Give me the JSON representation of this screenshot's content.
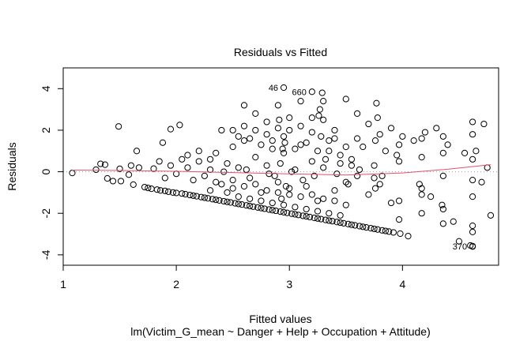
{
  "chart_data": {
    "type": "scatter",
    "title": "Residuals vs Fitted",
    "xlabel": "Fitted values",
    "ylabel": "Residuals",
    "subtitle": "lm(Victim_G_mean ~ Danger + Help + Occupation + Attitude)",
    "xlim": [
      1.0,
      4.85
    ],
    "ylim": [
      -4.5,
      5.0
    ],
    "xticks": [
      1,
      2,
      3,
      4
    ],
    "yticks": [
      -4,
      -2,
      0,
      2,
      4
    ],
    "grid": false,
    "point_style": "open-circle",
    "reference_line": {
      "y": 0,
      "style": "dotted",
      "color": "#9e9e9e"
    },
    "smooth": {
      "color": "#df536b",
      "x": [
        1.08,
        1.5,
        2.0,
        2.5,
        3.0,
        3.5,
        4.0,
        4.4,
        4.78
      ],
      "y": [
        0.08,
        0.06,
        0.02,
        -0.04,
        -0.1,
        -0.16,
        -0.06,
        0.12,
        0.34
      ]
    },
    "annotations": [
      {
        "label": "46",
        "x": 2.95,
        "y": 4.05
      },
      {
        "label": "660",
        "x": 3.2,
        "y": 3.85
      },
      {
        "label": "370",
        "x": 4.62,
        "y": -3.58
      }
    ],
    "points": [
      [
        1.08,
        -0.06
      ],
      [
        1.29,
        0.1
      ],
      [
        1.33,
        0.38
      ],
      [
        1.37,
        0.34
      ],
      [
        1.39,
        -0.32
      ],
      [
        1.44,
        -0.45
      ],
      [
        1.49,
        2.18
      ],
      [
        1.5,
        0.14
      ],
      [
        1.51,
        -0.45
      ],
      [
        1.58,
        -0.14
      ],
      [
        1.6,
        0.3
      ],
      [
        1.62,
        -0.62
      ],
      [
        1.65,
        1.0
      ],
      [
        1.67,
        0.2
      ],
      [
        1.72,
        -0.74
      ],
      [
        1.75,
        -0.78
      ],
      [
        1.78,
        -0.82
      ],
      [
        1.8,
        0.15
      ],
      [
        1.83,
        -0.86
      ],
      [
        1.86,
        -0.9
      ],
      [
        1.88,
        1.4
      ],
      [
        1.9,
        -0.92
      ],
      [
        1.93,
        -0.96
      ],
      [
        1.95,
        2.05
      ],
      [
        1.97,
        -1.0
      ],
      [
        2.0,
        -1.02
      ],
      [
        2.03,
        2.25
      ],
      [
        2.05,
        -1.05
      ],
      [
        2.08,
        -1.08
      ],
      [
        2.1,
        0.8
      ],
      [
        2.12,
        -1.12
      ],
      [
        2.15,
        -1.15
      ],
      [
        2.18,
        -1.18
      ],
      [
        2.2,
        1.0
      ],
      [
        2.22,
        -1.22
      ],
      [
        2.25,
        -1.25
      ],
      [
        2.28,
        -1.28
      ],
      [
        2.3,
        0.6
      ],
      [
        2.32,
        -1.32
      ],
      [
        2.35,
        -1.35
      ],
      [
        2.38,
        -1.38
      ],
      [
        2.4,
        2.0
      ],
      [
        2.42,
        -1.42
      ],
      [
        2.45,
        -1.45
      ],
      [
        2.48,
        -1.48
      ],
      [
        2.5,
        1.2
      ],
      [
        2.52,
        -1.52
      ],
      [
        2.55,
        -1.55
      ],
      [
        2.58,
        -1.58
      ],
      [
        2.6,
        3.2
      ],
      [
        2.62,
        -1.62
      ],
      [
        2.65,
        -1.65
      ],
      [
        2.68,
        -1.68
      ],
      [
        2.7,
        2.8
      ],
      [
        2.72,
        -1.72
      ],
      [
        2.75,
        -1.75
      ],
      [
        2.78,
        -1.78
      ],
      [
        2.8,
        1.8
      ],
      [
        2.82,
        -1.82
      ],
      [
        2.85,
        -1.85
      ],
      [
        2.88,
        -1.88
      ],
      [
        2.9,
        3.2
      ],
      [
        2.92,
        -1.92
      ],
      [
        2.95,
        -1.95
      ],
      [
        2.98,
        -1.98
      ],
      [
        3.0,
        2.6
      ],
      [
        3.02,
        -2.02
      ],
      [
        3.05,
        -2.05
      ],
      [
        3.08,
        -2.08
      ],
      [
        3.1,
        3.4
      ],
      [
        3.12,
        -2.12
      ],
      [
        3.15,
        -2.15
      ],
      [
        3.18,
        -2.18
      ],
      [
        3.2,
        2.6
      ],
      [
        3.22,
        -2.22
      ],
      [
        3.25,
        -2.25
      ],
      [
        3.28,
        -2.28
      ],
      [
        3.3,
        3.4
      ],
      [
        3.32,
        -2.32
      ],
      [
        3.35,
        -2.35
      ],
      [
        3.38,
        -2.38
      ],
      [
        3.4,
        1.6
      ],
      [
        3.42,
        -2.42
      ],
      [
        3.45,
        -2.45
      ],
      [
        3.48,
        -2.48
      ],
      [
        3.5,
        3.5
      ],
      [
        3.52,
        -2.52
      ],
      [
        3.55,
        -2.55
      ],
      [
        3.58,
        -2.58
      ],
      [
        3.6,
        2.8
      ],
      [
        3.62,
        -2.62
      ],
      [
        3.65,
        -2.65
      ],
      [
        3.68,
        -2.68
      ],
      [
        3.7,
        2.3
      ],
      [
        3.72,
        -2.72
      ],
      [
        3.75,
        -2.75
      ],
      [
        3.78,
        -2.78
      ],
      [
        3.8,
        1.8
      ],
      [
        3.82,
        -2.82
      ],
      [
        3.85,
        -2.85
      ],
      [
        3.88,
        -2.88
      ],
      [
        3.9,
        2.1
      ],
      [
        3.92,
        -2.92
      ],
      [
        3.95,
        0.8
      ],
      [
        3.98,
        -2.98
      ],
      [
        4.0,
        1.7
      ],
      [
        4.05,
        -3.1
      ],
      [
        4.1,
        1.5
      ],
      [
        4.15,
        -0.6
      ],
      [
        4.2,
        1.9
      ],
      [
        4.25,
        -1.2
      ],
      [
        4.3,
        2.1
      ],
      [
        4.35,
        -1.6
      ],
      [
        4.4,
        1.3
      ],
      [
        4.45,
        -2.4
      ],
      [
        4.5,
        -3.35
      ],
      [
        4.55,
        0.9
      ],
      [
        4.6,
        -3.55
      ],
      [
        4.65,
        1.0
      ],
      [
        4.7,
        -0.5
      ],
      [
        4.72,
        2.3
      ],
      [
        4.75,
        0.2
      ],
      [
        4.78,
        -2.1
      ],
      [
        4.62,
        2.4
      ],
      [
        4.62,
        1.8
      ],
      [
        4.62,
        0.6
      ],
      [
        4.62,
        -0.4
      ],
      [
        4.62,
        -1.2
      ],
      [
        4.62,
        -2.6
      ],
      [
        4.62,
        -2.9
      ],
      [
        4.62,
        -3.6
      ],
      [
        4.36,
        1.7
      ],
      [
        4.36,
        0.9
      ],
      [
        4.36,
        -0.2
      ],
      [
        4.36,
        -1.8
      ],
      [
        4.36,
        -2.5
      ],
      [
        4.17,
        1.6
      ],
      [
        4.17,
        0.7
      ],
      [
        4.17,
        -0.8
      ],
      [
        4.17,
        -1.1
      ],
      [
        4.17,
        -2.0
      ],
      [
        3.97,
        1.3
      ],
      [
        3.97,
        0.5
      ],
      [
        3.97,
        -1.4
      ],
      [
        3.97,
        -2.3
      ],
      [
        2.2,
        0.5
      ],
      [
        2.25,
        -0.2
      ],
      [
        2.3,
        0.1
      ],
      [
        2.35,
        0.9
      ],
      [
        2.4,
        -0.6
      ],
      [
        2.45,
        0.4
      ],
      [
        2.5,
        -0.8
      ],
      [
        2.55,
        0.2
      ],
      [
        2.6,
        1.5
      ],
      [
        2.65,
        -0.3
      ],
      [
        2.7,
        0.7
      ],
      [
        2.75,
        -1.0
      ],
      [
        2.8,
        0.3
      ],
      [
        2.85,
        1.1
      ],
      [
        2.9,
        -0.5
      ],
      [
        2.95,
        0.9
      ],
      [
        3.0,
        -1.1
      ],
      [
        3.05,
        0.1
      ],
      [
        3.1,
        1.3
      ],
      [
        3.15,
        -0.7
      ],
      [
        3.2,
        0.5
      ],
      [
        3.25,
        -1.4
      ],
      [
        3.3,
        0.2
      ],
      [
        3.35,
        1.0
      ],
      [
        3.4,
        -0.9
      ],
      [
        3.45,
        0.4
      ],
      [
        3.5,
        -1.6
      ],
      [
        3.55,
        0.6
      ],
      [
        3.6,
        -0.2
      ],
      [
        3.65,
        1.2
      ],
      [
        3.7,
        -1.1
      ],
      [
        3.75,
        0.3
      ],
      [
        3.8,
        -0.6
      ],
      [
        3.85,
        1.0
      ],
      [
        3.9,
        -1.5
      ],
      [
        2.1,
        0.2
      ],
      [
        2.15,
        -0.4
      ],
      [
        2.05,
        0.6
      ],
      [
        2.0,
        -0.1
      ],
      [
        1.95,
        0.3
      ],
      [
        1.9,
        -0.3
      ],
      [
        1.85,
        0.5
      ],
      [
        2.5,
        2.0
      ],
      [
        2.55,
        1.7
      ],
      [
        2.6,
        2.2
      ],
      [
        2.65,
        1.6
      ],
      [
        2.7,
        2.0
      ],
      [
        2.75,
        1.3
      ],
      [
        2.8,
        2.4
      ],
      [
        2.85,
        1.5
      ],
      [
        2.9,
        2.1
      ],
      [
        2.95,
        1.7
      ],
      [
        3.0,
        2.0
      ],
      [
        3.05,
        1.1
      ],
      [
        3.1,
        2.2
      ],
      [
        3.15,
        1.4
      ],
      [
        3.2,
        1.9
      ],
      [
        3.25,
        1.0
      ],
      [
        3.3,
        2.5
      ],
      [
        3.35,
        1.5
      ],
      [
        3.4,
        2.0
      ],
      [
        3.45,
        0.8
      ],
      [
        3.5,
        1.2
      ],
      [
        3.55,
        0.3
      ],
      [
        3.6,
        1.6
      ],
      [
        2.3,
        -0.9
      ],
      [
        2.35,
        -0.5
      ],
      [
        2.45,
        -1.0
      ],
      [
        2.5,
        -0.4
      ],
      [
        2.55,
        -1.2
      ],
      [
        2.6,
        -0.7
      ],
      [
        2.65,
        -1.3
      ],
      [
        2.7,
        -0.6
      ],
      [
        2.75,
        -1.4
      ],
      [
        2.8,
        -0.9
      ],
      [
        2.85,
        -1.5
      ],
      [
        2.9,
        -1.0
      ],
      [
        2.95,
        -1.6
      ],
      [
        3.0,
        -0.8
      ],
      [
        3.05,
        -1.7
      ],
      [
        3.1,
        -1.2
      ],
      [
        3.15,
        -1.8
      ],
      [
        3.2,
        -1.1
      ],
      [
        3.25,
        -1.9
      ],
      [
        3.3,
        -1.3
      ],
      [
        3.35,
        -2.0
      ],
      [
        3.4,
        -1.4
      ],
      [
        3.45,
        -2.1
      ],
      [
        3.5,
        -0.5
      ],
      [
        2.42,
        0.0
      ],
      [
        2.62,
        0.1
      ],
      [
        2.82,
        -0.1
      ],
      [
        3.02,
        0.0
      ],
      [
        3.22,
        -0.2
      ],
      [
        3.42,
        -0.1
      ],
      [
        3.62,
        0.1
      ],
      [
        3.82,
        -0.2
      ],
      [
        2.92,
        0.4
      ],
      [
        3.12,
        -0.4
      ],
      [
        3.32,
        0.6
      ],
      [
        3.52,
        -0.6
      ],
      [
        2.87,
        -0.2
      ],
      [
        2.97,
        -0.7
      ],
      [
        2.93,
        -1.3
      ],
      [
        2.96,
        1.4
      ],
      [
        2.91,
        2.5
      ],
      [
        2.94,
        1.1
      ],
      [
        3.27,
        3.0
      ],
      [
        3.26,
        2.7
      ],
      [
        3.29,
        3.8
      ],
      [
        3.28,
        1.7
      ],
      [
        3.77,
        3.3
      ],
      [
        3.78,
        2.6
      ],
      [
        3.76,
        1.5
      ],
      [
        3.75,
        -0.3
      ],
      [
        3.76,
        -0.8
      ]
    ]
  }
}
